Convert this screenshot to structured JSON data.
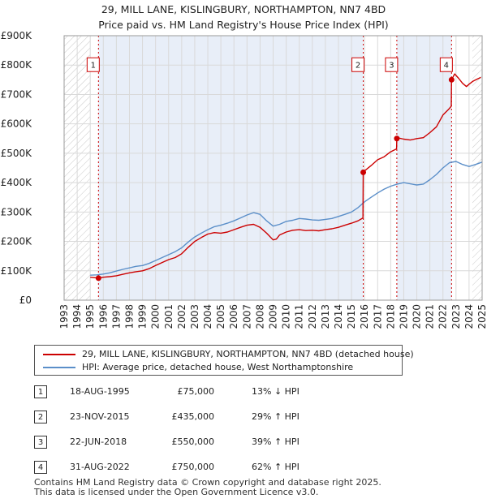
{
  "chart_data": {
    "type": "line",
    "title": "29, MILL LANE, KISLINGBURY, NORTHAMPTON, NN7 4BD",
    "subtitle": "Price paid vs. HM Land Registry's House Price Index (HPI)",
    "xlabel": "",
    "ylabel": "",
    "xlim": [
      1993,
      2025
    ],
    "ylim": [
      0,
      900000
    ],
    "y_ticks": [
      0,
      100000,
      200000,
      300000,
      400000,
      500000,
      600000,
      700000,
      800000,
      900000
    ],
    "y_tick_labels": [
      "£0",
      "£100K",
      "£200K",
      "£300K",
      "£400K",
      "£500K",
      "£600K",
      "£700K",
      "£800K",
      "£900K"
    ],
    "x_ticks": [
      1993,
      1994,
      1995,
      1996,
      1997,
      1998,
      1999,
      2000,
      2001,
      2002,
      2003,
      2004,
      2005,
      2006,
      2007,
      2008,
      2009,
      2010,
      2011,
      2012,
      2013,
      2014,
      2015,
      2016,
      2017,
      2018,
      2019,
      2020,
      2021,
      2022,
      2023,
      2024,
      2025
    ],
    "x_tick_labels": [
      "1993",
      "1994",
      "1995",
      "1996",
      "1997",
      "1998",
      "1999",
      "2000",
      "2001",
      "2002",
      "2003",
      "2004",
      "2005",
      "2006",
      "2007",
      "2008",
      "2009",
      "2010",
      "2011",
      "2012",
      "2013",
      "2014",
      "2015",
      "2016",
      "2017",
      "2018",
      "2019",
      "2020",
      "2021",
      "2022",
      "2023",
      "2024",
      "2025"
    ],
    "grid": true,
    "hatched_ranges": [
      [
        1993.0,
        1995.0
      ],
      [
        2024.25,
        2025.0
      ]
    ],
    "highlight_ranges": [
      [
        1995.63,
        2015.9
      ],
      [
        2018.47,
        2022.66
      ]
    ],
    "series": [
      {
        "name": "29, MILL LANE, KISLINGBURY, NORTHAMPTON, NN7 4BD (detached house)",
        "color": "#cc0000",
        "x": [
          1995.0,
          1995.63,
          1996.0,
          1996.5,
          1997.0,
          1997.5,
          1998.0,
          1998.5,
          1999.0,
          1999.5,
          2000.0,
          2000.5,
          2001.0,
          2001.5,
          2002.0,
          2002.5,
          2003.0,
          2003.5,
          2004.0,
          2004.5,
          2005.0,
          2005.5,
          2006.0,
          2006.5,
          2007.0,
          2007.5,
          2008.0,
          2008.5,
          2009.0,
          2009.25,
          2009.5,
          2010.0,
          2010.5,
          2011.0,
          2011.5,
          2012.0,
          2012.5,
          2013.0,
          2013.5,
          2014.0,
          2014.5,
          2015.0,
          2015.5,
          2015.88,
          2015.9,
          2016.0,
          2016.5,
          2017.0,
          2017.5,
          2018.0,
          2018.45,
          2018.47,
          2018.6,
          2019.0,
          2019.5,
          2020.0,
          2020.5,
          2021.0,
          2021.5,
          2022.0,
          2022.4,
          2022.64,
          2022.66,
          2022.9,
          2023.2,
          2023.5,
          2023.8,
          2024.0,
          2024.3,
          2024.6,
          2024.9
        ],
        "values": [
          78000,
          75000,
          78000,
          80000,
          83000,
          88000,
          93000,
          97000,
          100000,
          107000,
          118000,
          128000,
          138000,
          145000,
          158000,
          180000,
          200000,
          213000,
          225000,
          230000,
          228000,
          232000,
          240000,
          248000,
          255000,
          258000,
          248000,
          228000,
          205000,
          208000,
          222000,
          232000,
          238000,
          240000,
          237000,
          238000,
          236000,
          240000,
          243000,
          248000,
          255000,
          262000,
          270000,
          280000,
          435000,
          440000,
          458000,
          478000,
          488000,
          505000,
          515000,
          550000,
          552000,
          548000,
          545000,
          550000,
          553000,
          570000,
          590000,
          630000,
          648000,
          660000,
          750000,
          770000,
          755000,
          738000,
          727000,
          735000,
          745000,
          752000,
          758000
        ]
      },
      {
        "name": "HPI: Average price, detached house, West Northamptonshire",
        "color": "#5b8fc9",
        "x": [
          1995.0,
          1995.5,
          1996.0,
          1996.5,
          1997.0,
          1997.5,
          1998.0,
          1998.5,
          1999.0,
          1999.5,
          2000.0,
          2000.5,
          2001.0,
          2001.5,
          2002.0,
          2002.5,
          2003.0,
          2003.5,
          2004.0,
          2004.5,
          2005.0,
          2005.5,
          2006.0,
          2006.5,
          2007.0,
          2007.5,
          2008.0,
          2008.5,
          2009.0,
          2009.5,
          2010.0,
          2010.5,
          2011.0,
          2011.5,
          2012.0,
          2012.5,
          2013.0,
          2013.5,
          2014.0,
          2014.5,
          2015.0,
          2015.5,
          2016.0,
          2016.5,
          2017.0,
          2017.5,
          2018.0,
          2018.5,
          2019.0,
          2019.5,
          2020.0,
          2020.5,
          2021.0,
          2021.5,
          2022.0,
          2022.5,
          2023.0,
          2023.5,
          2024.0,
          2024.5,
          2025.0
        ],
        "values": [
          85000,
          86000,
          89000,
          93000,
          99000,
          105000,
          110000,
          115000,
          118000,
          125000,
          135000,
          145000,
          155000,
          165000,
          178000,
          198000,
          215000,
          228000,
          240000,
          250000,
          255000,
          262000,
          270000,
          280000,
          290000,
          298000,
          292000,
          270000,
          252000,
          258000,
          268000,
          272000,
          278000,
          276000,
          273000,
          272000,
          275000,
          278000,
          285000,
          292000,
          300000,
          315000,
          335000,
          350000,
          365000,
          378000,
          388000,
          395000,
          400000,
          396000,
          392000,
          395000,
          410000,
          428000,
          450000,
          468000,
          472000,
          462000,
          455000,
          462000,
          470000
        ]
      }
    ],
    "markers": [
      {
        "label": "1",
        "x": 1995.63,
        "y": 75000
      },
      {
        "label": "2",
        "x": 2015.9,
        "y": 435000
      },
      {
        "label": "3",
        "x": 2018.47,
        "y": 550000
      },
      {
        "label": "4",
        "x": 2022.66,
        "y": 750000
      }
    ],
    "marker_box_values": [
      800000,
      800000,
      800000,
      800000
    ]
  },
  "legend": {
    "property_label": "29, MILL LANE, KISLINGBURY, NORTHAMPTON, NN7 4BD (detached house)",
    "hpi_label": "HPI: Average price, detached house, West Northamptonshire",
    "property_color": "#cc0000",
    "hpi_color": "#5b8fc9"
  },
  "sales": [
    {
      "num": "1",
      "date": "18-AUG-1995",
      "price": "£75,000",
      "hpi": "13% ↓ HPI"
    },
    {
      "num": "2",
      "date": "23-NOV-2015",
      "price": "£435,000",
      "hpi": "29% ↑ HPI"
    },
    {
      "num": "3",
      "date": "22-JUN-2018",
      "price": "£550,000",
      "hpi": "39% ↑ HPI"
    },
    {
      "num": "4",
      "date": "31-AUG-2022",
      "price": "£750,000",
      "hpi": "62% ↑ HPI"
    }
  ],
  "footer": {
    "line1": "Contains HM Land Registry data © Crown copyright and database right 2025.",
    "line2": "This data is licensed under the Open Government Licence v3.0."
  }
}
